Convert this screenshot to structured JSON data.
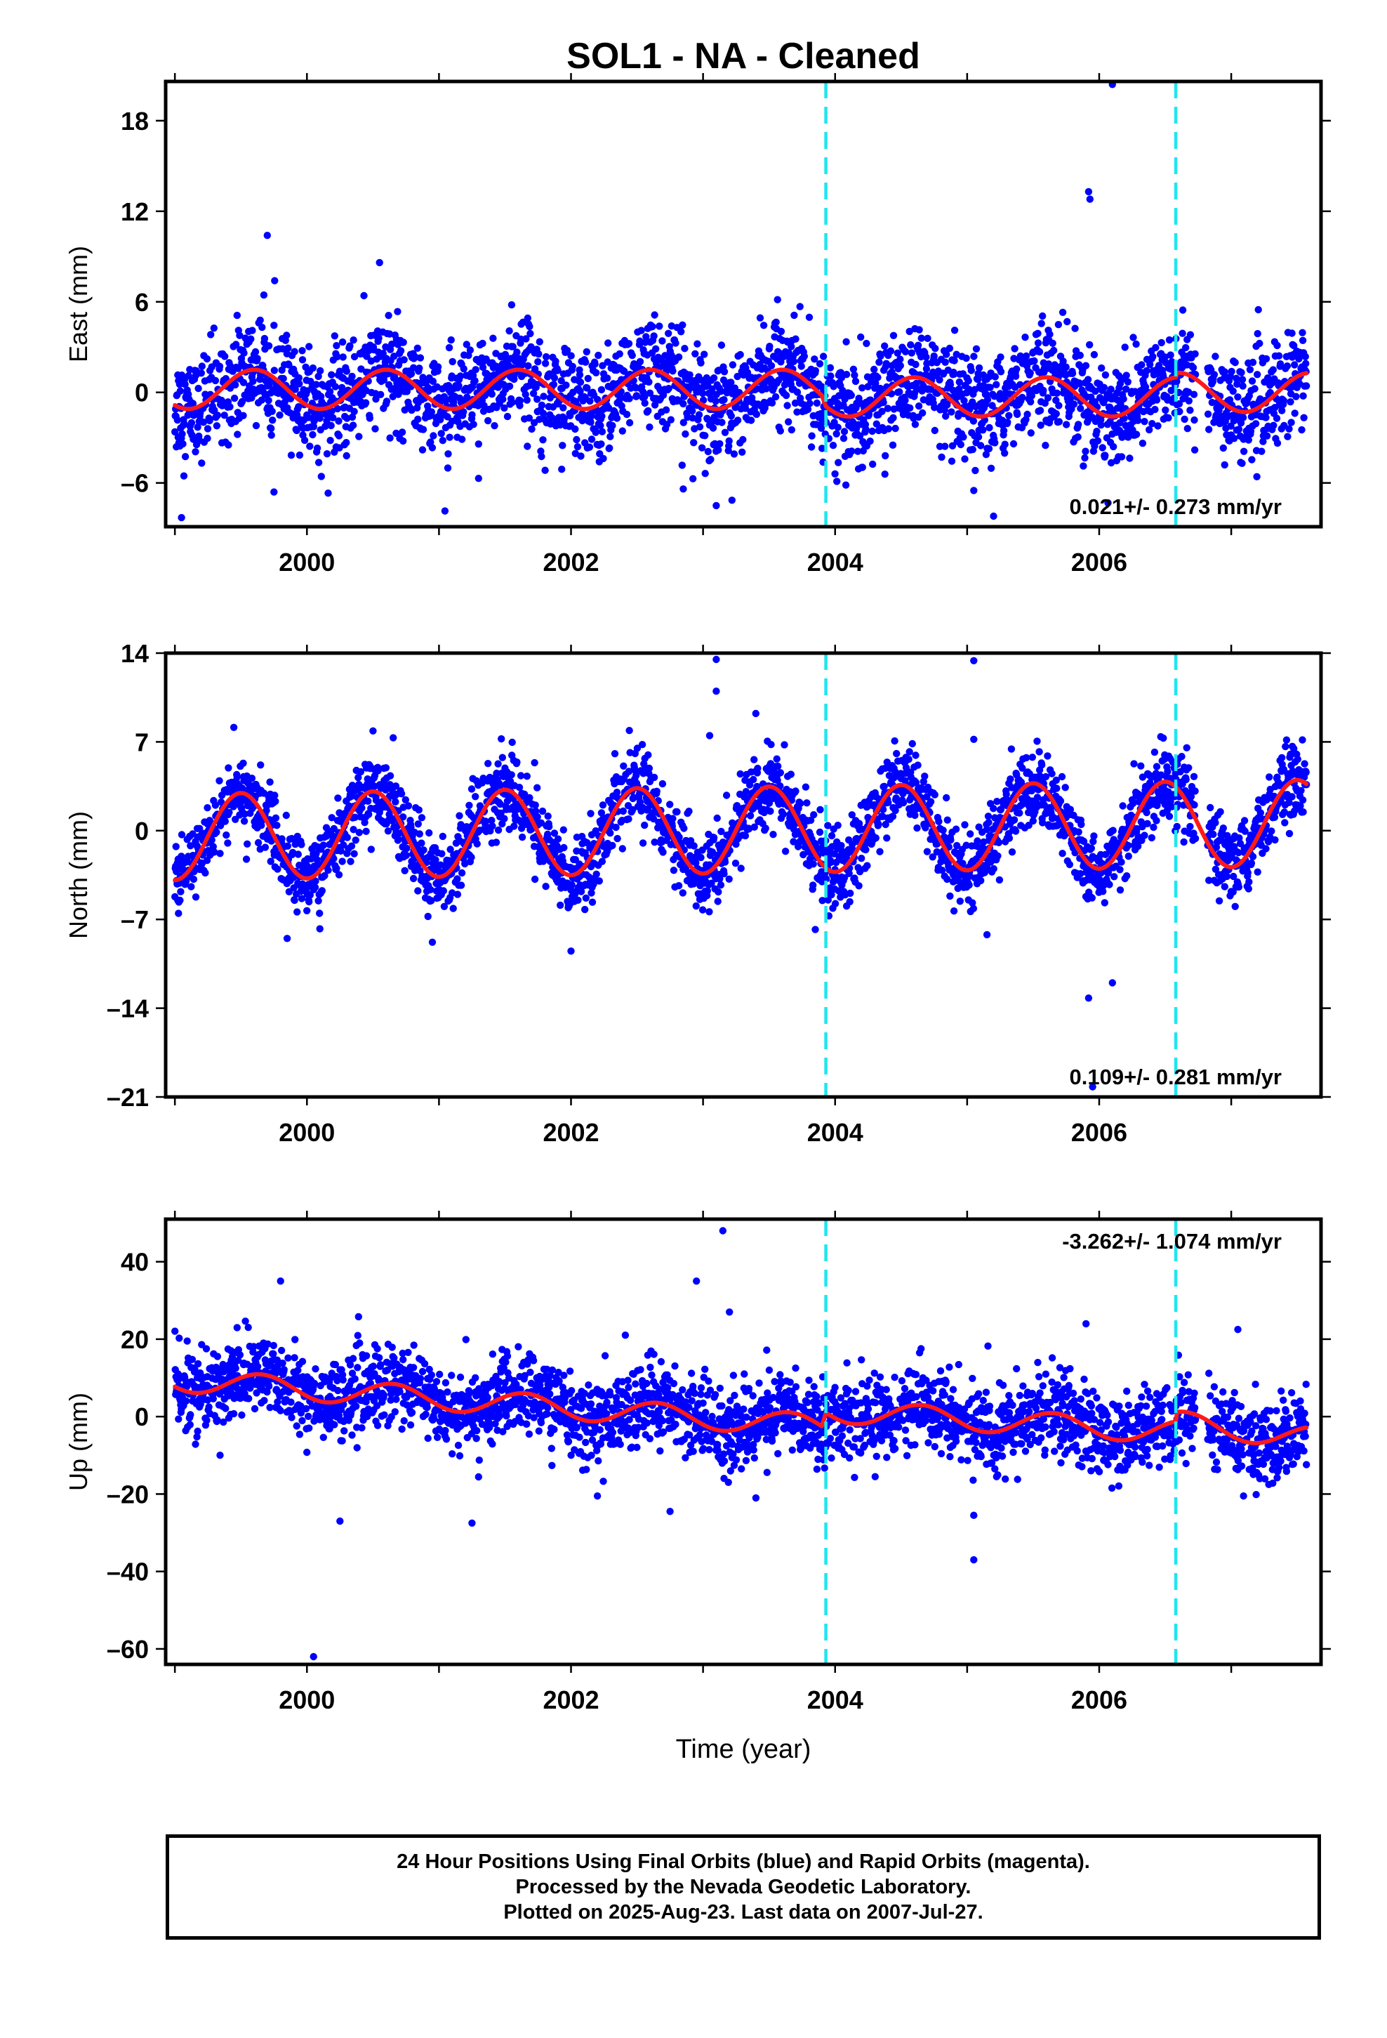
{
  "chart_data": {
    "type": "scatter",
    "title": "SOL1  - NA - Cleaned",
    "xlabel": "Time (year)",
    "xlim": [
      1998.93,
      2007.68
    ],
    "x_ticks": [
      2000,
      2002,
      2004,
      2006
    ],
    "x_tick_labels": [
      "2000",
      "2002",
      "2004",
      "2006"
    ],
    "event_lines_x": [
      2003.93,
      2006.58
    ],
    "colors": {
      "points": "#0000ff",
      "fit": "#ff1a1a",
      "event_lines": "#1ee6ee",
      "frame": "#000000"
    },
    "panels": [
      {
        "ylabel": "East (mm)",
        "ylim": [
          -8.9,
          20.6
        ],
        "y_ticks": [
          -6,
          0,
          6,
          12,
          18
        ],
        "y_tick_labels": [
          "-6",
          "0",
          "6",
          "12",
          "18"
        ],
        "rate_text": "0.021+/- 0.273 mm/yr",
        "rate_position": "bottom-right",
        "fit": {
          "amplitude": 1.3,
          "mean": [
            [
              1999.0,
              0.2
            ],
            [
              2003.9,
              0.2
            ],
            [
              2003.93,
              -0.3
            ],
            [
              2006.58,
              -0.3
            ],
            [
              2006.58,
              0.0
            ],
            [
              2007.58,
              0.0
            ]
          ],
          "phase_peak": 0.6
        },
        "scatter": {
          "sigma": 1.7,
          "outliers": [
            [
              1999.05,
              -8.3
            ],
            [
              1999.75,
              -6.6
            ],
            [
              2000.3,
              -4.2
            ],
            [
              2001.3,
              -5.7
            ],
            [
              2002.85,
              -6.4
            ],
            [
              2003.1,
              -7.5
            ],
            [
              2005.05,
              -6.5
            ],
            [
              2005.2,
              -8.2
            ],
            [
              2005.92,
              13.3
            ],
            [
              2005.93,
              12.8
            ],
            [
              2006.1,
              20.4
            ],
            [
              2006.95,
              -4.8
            ],
            [
              1999.7,
              10.4
            ],
            [
              2000.55,
              8.6
            ],
            [
              2001.55,
              5.8
            ]
          ]
        }
      },
      {
        "ylabel": "North (mm)",
        "ylim": [
          -21,
          14
        ],
        "y_ticks": [
          -21,
          -14,
          -7,
          0,
          7,
          14
        ],
        "y_tick_labels": [
          "-21",
          "-14",
          "-7",
          "0",
          "7",
          "14"
        ],
        "rate_text": "0.109+/- 0.281 mm/yr",
        "rate_position": "bottom-right",
        "fit": {
          "amplitude": 3.4,
          "mean": [
            [
              1999.0,
              -0.5
            ],
            [
              2007.58,
              0.6
            ]
          ],
          "phase_peak": 0.5
        },
        "scatter": {
          "sigma": 1.5,
          "outliers": [
            [
              2003.1,
              13.5
            ],
            [
              2003.1,
              11.0
            ],
            [
              2003.05,
              7.5
            ],
            [
              2005.05,
              13.4
            ],
            [
              2005.05,
              7.2
            ],
            [
              2005.15,
              -8.2
            ],
            [
              2005.92,
              -13.2
            ],
            [
              2006.1,
              -12.0
            ],
            [
              2005.95,
              -20.2
            ],
            [
              1999.85,
              -8.5
            ],
            [
              2000.95,
              -8.8
            ],
            [
              2002.0,
              -9.5
            ],
            [
              2003.85,
              -7.8
            ]
          ]
        }
      },
      {
        "ylabel": "Up (mm)",
        "ylim": [
          -64,
          51
        ],
        "y_ticks": [
          -60,
          -40,
          -20,
          0,
          20,
          40
        ],
        "y_tick_labels": [
          "-60",
          "-40",
          "-20",
          "0",
          "20",
          "40"
        ],
        "rate_text": "-3.262+/- 1.074 mm/yr",
        "rate_position": "top-right",
        "fit": {
          "amplitude": 3.0,
          "mean": [
            [
              1999.0,
              9.5
            ],
            [
              2003.9,
              -2.5
            ],
            [
              2003.93,
              1.5
            ],
            [
              2006.58,
              -4.0
            ],
            [
              2006.58,
              -1.5
            ],
            [
              2007.58,
              -5.5
            ]
          ],
          "phase_peak": 0.65
        },
        "scatter": {
          "sigma": 5.2,
          "outliers": [
            [
              2000.05,
              -62.0
            ],
            [
              1999.8,
              35.0
            ],
            [
              2002.95,
              35.0
            ],
            [
              2003.15,
              48.0
            ],
            [
              2003.2,
              27.0
            ],
            [
              2002.75,
              -24.5
            ],
            [
              2000.25,
              -27.0
            ],
            [
              2001.25,
              -27.5
            ],
            [
              2005.05,
              -37.0
            ],
            [
              2005.05,
              -25.5
            ],
            [
              2005.9,
              24.0
            ],
            [
              2007.05,
              22.5
            ],
            [
              2002.2,
              -20.5
            ],
            [
              2003.4,
              -21.0
            ]
          ]
        }
      }
    ]
  },
  "footer": {
    "line1": "24 Hour Positions Using Final Orbits (blue) and Rapid Orbits (magenta).",
    "line2": "Processed by the Nevada Geodetic Laboratory.",
    "line3": "Plotted on 2025-Aug-23. Last data on 2007-Jul-27."
  }
}
